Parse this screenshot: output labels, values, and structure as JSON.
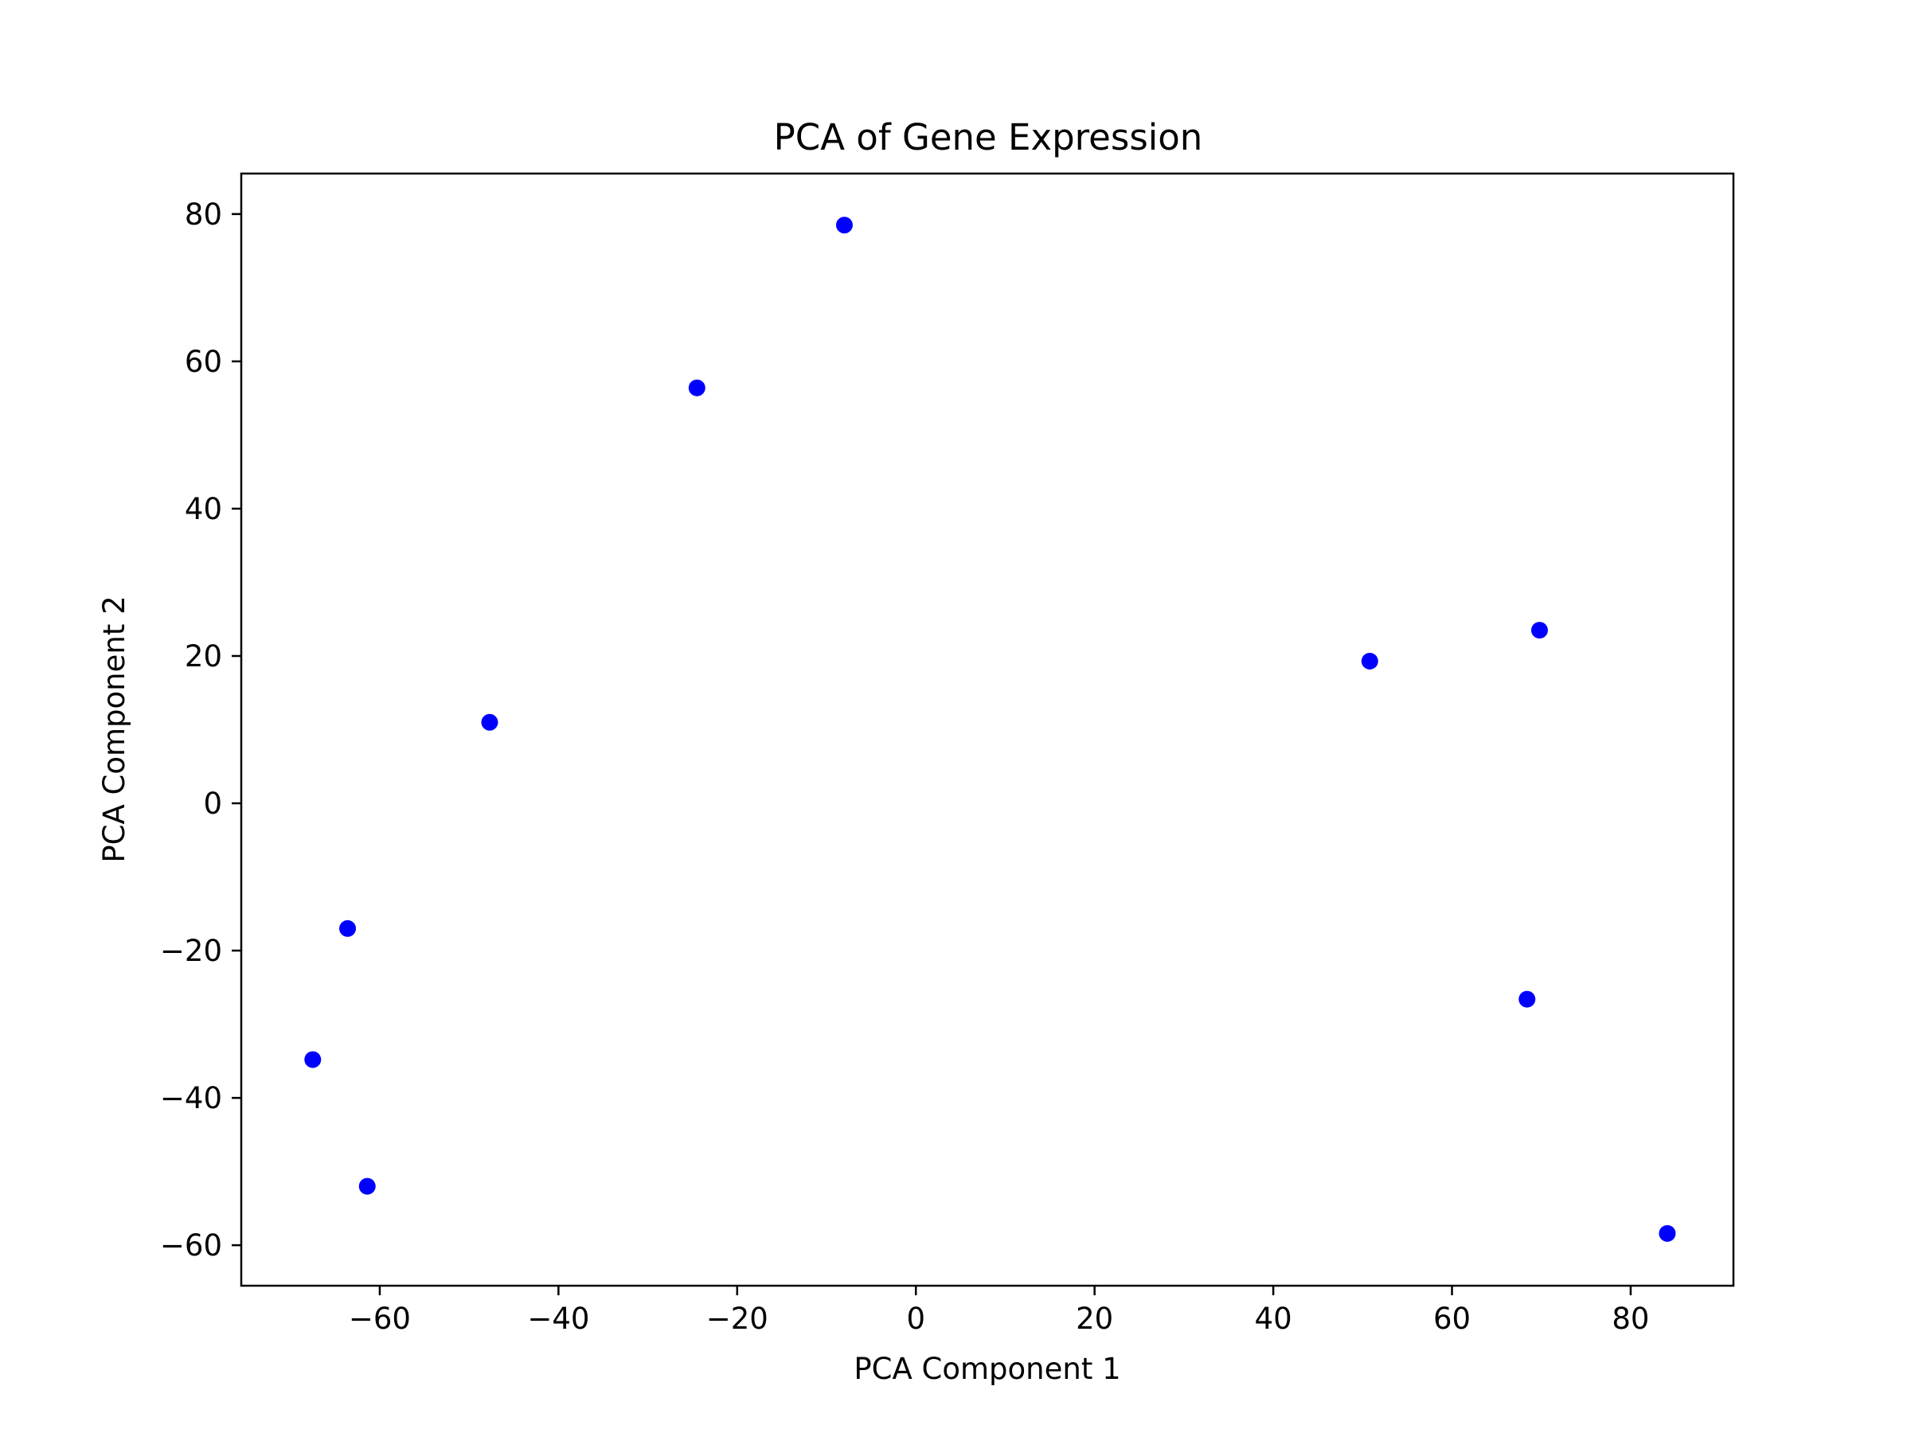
{
  "chart_data": {
    "type": "scatter",
    "title": "PCA of Gene Expression",
    "xlabel": "PCA Component 1",
    "ylabel": "PCA Component 2",
    "xlim": [
      -75.5,
      91.5
    ],
    "ylim": [
      -65.5,
      85.5
    ],
    "xticks": [
      -60,
      -40,
      -20,
      0,
      20,
      40,
      60,
      80
    ],
    "yticks": [
      -60,
      -40,
      -20,
      0,
      20,
      40,
      60,
      80
    ],
    "grid": false,
    "marker_color": "#0000ff",
    "series": [
      {
        "points": [
          {
            "x": -8.0,
            "y": 78.5
          },
          {
            "x": -24.5,
            "y": 56.4
          },
          {
            "x": -47.7,
            "y": 11.0
          },
          {
            "x": -63.6,
            "y": -17.0
          },
          {
            "x": -67.5,
            "y": -34.8
          },
          {
            "x": -61.4,
            "y": -52.0
          },
          {
            "x": 50.8,
            "y": 19.3
          },
          {
            "x": 69.8,
            "y": 23.5
          },
          {
            "x": 68.4,
            "y": -26.6
          },
          {
            "x": 84.1,
            "y": -58.4
          }
        ]
      }
    ]
  }
}
